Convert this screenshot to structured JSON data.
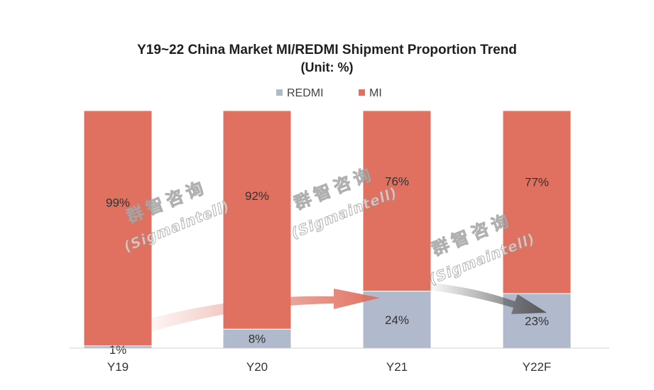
{
  "chart_data": {
    "type": "bar",
    "stacked": true,
    "percent_stacked": true,
    "title": "Y19~22 China Market MI/REDMI Shipment Proportion Trend",
    "subtitle": "(Unit: %)",
    "categories": [
      "Y19",
      "Y20",
      "Y21",
      "Y22F"
    ],
    "series": [
      {
        "name": "REDMI",
        "values": [
          1,
          8,
          24,
          23
        ],
        "labels": [
          "1%",
          "8%",
          "24%",
          "23%"
        ],
        "color": "#b1b9cc"
      },
      {
        "name": "MI",
        "values": [
          99,
          92,
          76,
          77
        ],
        "labels": [
          "99%",
          "92%",
          "76%",
          "77%"
        ],
        "color": "#e07060"
      }
    ],
    "ylim": [
      0,
      100
    ],
    "grid": false,
    "legend_position": "top-center"
  },
  "watermark": {
    "text_cn": "群智咨询",
    "text_en": "(Sigmaintell)"
  }
}
